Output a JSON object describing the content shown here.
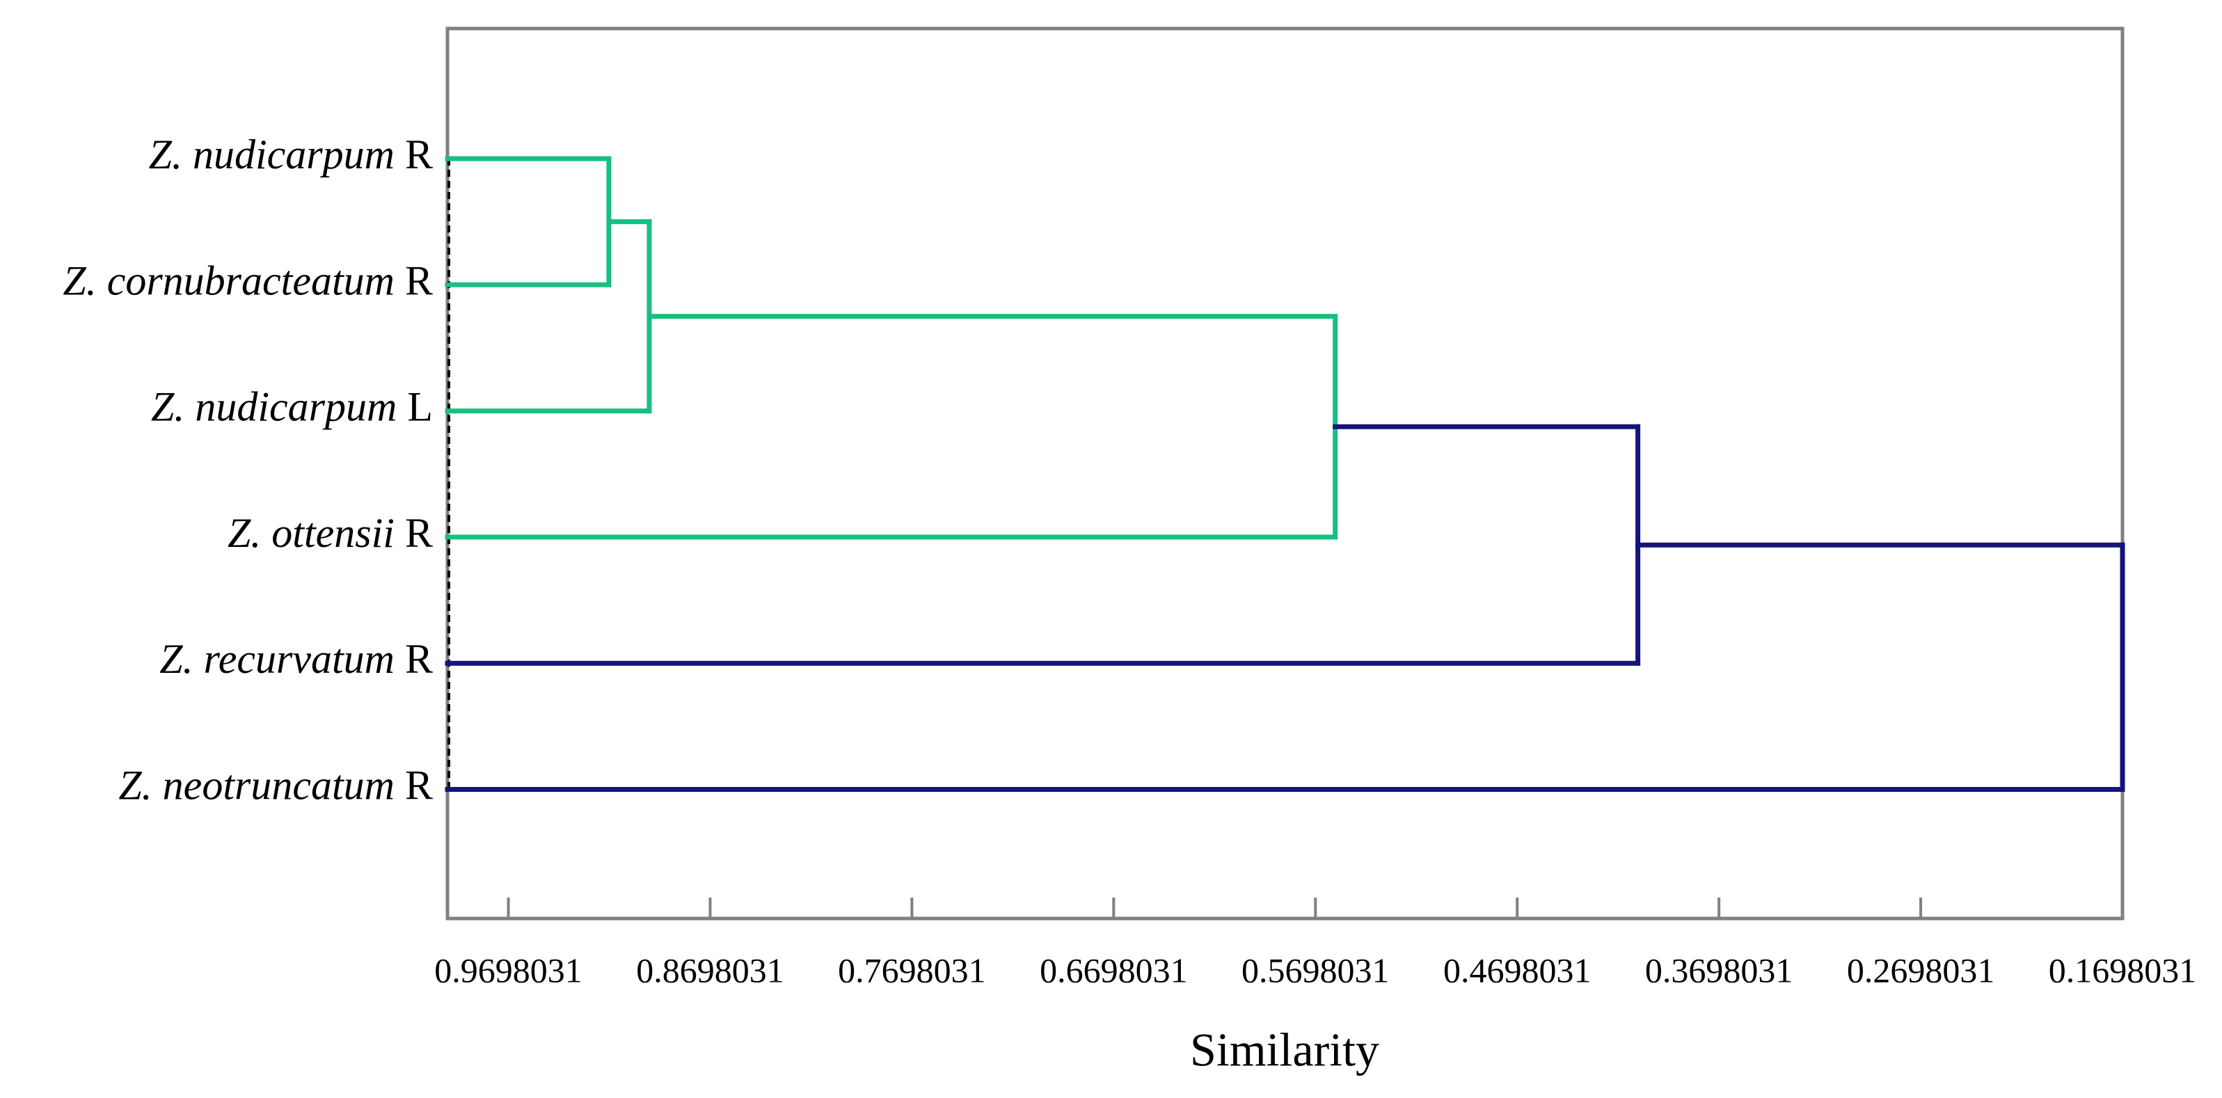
{
  "chart_data": {
    "type": "dendrogram",
    "x_label": "Similarity",
    "leaves": [
      {
        "name": "Z. nudicarpum",
        "suffix": "R"
      },
      {
        "name": "Z. cornubracteatum",
        "suffix": "R"
      },
      {
        "name": "Z. nudicarpum",
        "suffix": "L"
      },
      {
        "name": "Z. ottensii",
        "suffix": "R"
      },
      {
        "name": "Z. recurvatum",
        "suffix": "R"
      },
      {
        "name": "Z. neotruncatum",
        "suffix": "R"
      }
    ],
    "merges": [
      {
        "left": 0,
        "right": 1,
        "height": 0.92,
        "color": "#17c07f"
      },
      {
        "left": 6,
        "right": 2,
        "height": 0.9,
        "color": "#17c07f"
      },
      {
        "left": 7,
        "right": 3,
        "height": 0.56,
        "color": "#17c07f"
      },
      {
        "left": 8,
        "right": 4,
        "height": 0.41,
        "color": "#14147a"
      },
      {
        "left": 9,
        "right": 5,
        "height": 0.1698031,
        "color": "#14147a"
      }
    ],
    "xlim": [
      1.0,
      0.1698031
    ],
    "xticks": [
      0.9698031,
      0.8698031,
      0.7698031,
      0.6698031,
      0.5698031,
      0.4698031,
      0.3698031,
      0.2698031,
      0.1698031
    ]
  }
}
